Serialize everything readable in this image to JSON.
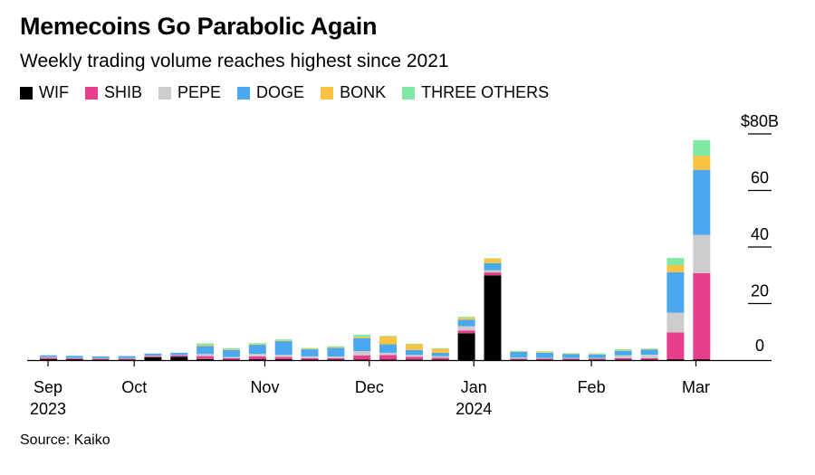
{
  "title": "Memecoins Go Parabolic Again",
  "subtitle": "Weekly trading volume reaches highest since 2021",
  "source": "Source: Kaiko",
  "colors": {
    "WIF": "#000000",
    "SHIB": "#e83e8c",
    "PEPE": "#cccccc",
    "DOGE": "#4aa8ee",
    "BONK": "#f7c341",
    "THREE OTHERS": "#7fe8a4"
  },
  "chart_data": {
    "type": "bar",
    "stacked": true,
    "legend_placement": "top-left",
    "grid": false,
    "ylim": [
      0,
      80
    ],
    "y_ticks": [
      "$80B",
      "60",
      "40",
      "20",
      "0"
    ],
    "x_ticks": [
      {
        "label": "Sep",
        "sub": "2023",
        "week": 0
      },
      {
        "label": "Oct",
        "sub": "",
        "week": 3.3
      },
      {
        "label": "Nov",
        "sub": "",
        "week": 8.3
      },
      {
        "label": "Dec",
        "sub": "",
        "week": 12.3
      },
      {
        "label": "Jan",
        "sub": "2024",
        "week": 16.3
      },
      {
        "label": "Feb",
        "sub": "",
        "week": 20.8
      },
      {
        "label": "Mar",
        "sub": "",
        "week": 24.8
      }
    ],
    "series_names": [
      "WIF",
      "SHIB",
      "PEPE",
      "DOGE",
      "BONK",
      "THREE OTHERS"
    ],
    "weeks": [
      [
        0.4,
        0.4,
        0.3,
        0.6,
        0,
        0
      ],
      [
        0.3,
        0.3,
        0.2,
        0.7,
        0,
        0
      ],
      [
        0.2,
        0.3,
        0.2,
        0.6,
        0,
        0
      ],
      [
        0.2,
        0.3,
        0.2,
        0.7,
        0,
        0
      ],
      [
        1.0,
        0.4,
        0.2,
        0.7,
        0,
        0
      ],
      [
        1.2,
        0.4,
        0.2,
        0.8,
        0,
        0
      ],
      [
        0.4,
        1.0,
        0.8,
        2.8,
        0.4,
        0.5
      ],
      [
        0.2,
        0.5,
        0.4,
        2.5,
        0.3,
        0.3
      ],
      [
        0.3,
        1.0,
        0.9,
        3.2,
        0.3,
        0.3
      ],
      [
        0.3,
        0.8,
        0.8,
        4.8,
        0.3,
        0.3
      ],
      [
        0.2,
        0.5,
        0.6,
        2.5,
        0.3,
        0.2
      ],
      [
        0.2,
        0.5,
        0.6,
        3.0,
        0.3,
        0.3
      ],
      [
        0.2,
        1.5,
        1.5,
        4.6,
        0.5,
        0.7
      ],
      [
        0.2,
        1.6,
        0.8,
        3.0,
        2.8,
        0.2
      ],
      [
        0.2,
        1.0,
        0.6,
        1.8,
        2.0,
        0.2
      ],
      [
        0.2,
        0.6,
        0.6,
        1.2,
        1.4,
        0.2
      ],
      [
        9.5,
        1.0,
        1.5,
        2.3,
        0.7,
        0.3
      ],
      [
        30.0,
        1.0,
        0.8,
        2.5,
        1.6,
        0.2
      ],
      [
        0.2,
        0.3,
        0.4,
        2.0,
        0.2,
        0.2
      ],
      [
        0.2,
        0.3,
        0.3,
        1.8,
        0.3,
        0.2
      ],
      [
        0.2,
        0.3,
        0.3,
        1.3,
        0.2,
        0.2
      ],
      [
        0.2,
        0.3,
        0.3,
        1.2,
        0.2,
        0.2
      ],
      [
        0.2,
        0.5,
        1.0,
        1.6,
        0.2,
        0.3
      ],
      [
        0.2,
        0.5,
        1.2,
        1.8,
        0.2,
        0.2
      ],
      [
        0.3,
        9.5,
        7.0,
        14.3,
        2.5,
        2.5
      ],
      [
        0.3,
        30.5,
        13.5,
        23.0,
        5.0,
        5.5
      ]
    ]
  }
}
